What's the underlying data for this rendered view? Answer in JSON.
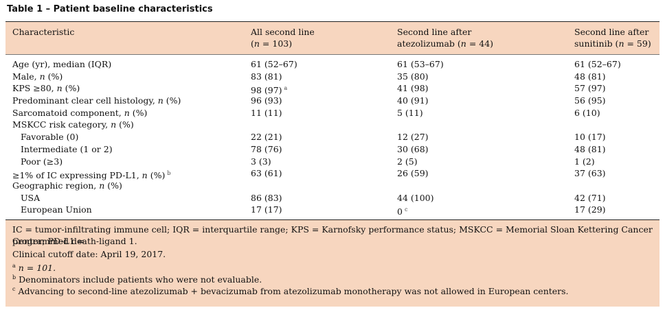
{
  "title": "Table 1 – Patient baseline characteristics",
  "headers": {
    "col1": "Characteristic",
    "col2_line1": "All second line",
    "col2_line2": "(n = 103)",
    "col3_line1": "Second line after",
    "col3_line2": "atezolizumab (n = 44)",
    "col4_line1": "Second line after",
    "col4_line2": "sunitinib (n = 59)"
  },
  "rows": [
    {
      "label": "Age (yr), median (IQR)",
      "all": "61 (52–67)",
      "atezo": "61 (53–67)",
      "suni": "61 (52–67)"
    },
    {
      "label": "Male, n (%)",
      "all": "83 (81)",
      "atezo": "35 (80)",
      "suni": "48 (81)"
    },
    {
      "label": "KPS ≥80, n (%)",
      "all": "98 (97)",
      "all_mark": "a",
      "atezo": "41 (98)",
      "suni": "57 (97)"
    },
    {
      "label": "Predominant clear cell histology, n (%)",
      "all": "96 (93)",
      "atezo": "40 (91)",
      "suni": "56 (95)"
    },
    {
      "label": "Sarcomatoid component, n (%)",
      "all": "11 (11)",
      "atezo": "5 (11)",
      "suni": "6 (10)"
    },
    {
      "label": "MSKCC risk category, n (%)",
      "all": "",
      "atezo": "",
      "suni": ""
    },
    {
      "label": "Favorable (0)",
      "all": "22 (21)",
      "atezo": "12 (27)",
      "suni": "10 (17)"
    },
    {
      "label": "Intermediate (1 or 2)",
      "all": "78 (76)",
      "atezo": "30 (68)",
      "suni": "48 (81)"
    },
    {
      "label": "Poor (≥3)",
      "all": "3 (3)",
      "atezo": "2 (5)",
      "suni": "1 (2)"
    },
    {
      "label": "≥1% of IC expressing PD-L1, n (%)",
      "label_mark": "b",
      "all": "63 (61)",
      "atezo": "26 (59)",
      "suni": "37 (63)"
    },
    {
      "label": "Geographic region, n (%)",
      "all": "",
      "atezo": "",
      "suni": ""
    },
    {
      "label": "USA",
      "all": "86 (83)",
      "atezo": "44 (100)",
      "suni": "42 (71)"
    },
    {
      "label": "European Union",
      "all": "17 (17)",
      "atezo": "0",
      "atezo_mark": "c",
      "suni": "17 (29)"
    }
  ],
  "footnotes": {
    "abbrev_line1": "IC = tumor-infiltrating immune cell; IQR = interquartile range; KPS = Karnofsky performance status; MSKCC = Memorial Sloan Kettering Cancer Center; PD-L1 =",
    "abbrev_line2": "programmed death-ligand 1.",
    "cutoff": "Clinical cutoff date: April 19, 2017.",
    "a_mark": "a",
    "a_text": "n = 101.",
    "b_mark": "b",
    "b_text": "Denominators include patients who were not evaluable.",
    "c_mark": "c",
    "c_text": "Advancing to second-line atezolizumab + bevacizumab from atezolizumab monotherapy was not allowed in European centers."
  }
}
